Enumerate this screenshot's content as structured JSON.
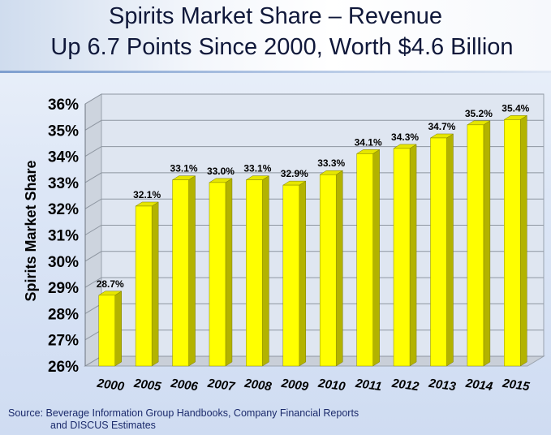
{
  "header": {
    "title_line1": "Spirits Market Share – Revenue",
    "title_line2": "Up 6.7 Points Since 2000, Worth $4.6 Billion"
  },
  "footer": {
    "source_line1": "Source: Beverage Information Group Handbooks, Company Financial Reports",
    "source_line2": "and DISCUS Estimates"
  },
  "colors": {
    "bar_face": "#ffff00",
    "bar_side": "#b3b300",
    "bar_top": "#e6e600"
  },
  "chart_data": {
    "type": "bar",
    "categories": [
      "2000",
      "2005",
      "2006",
      "2007",
      "2008",
      "2009",
      "2010",
      "2011",
      "2012",
      "2013",
      "2014",
      "2015"
    ],
    "values": [
      28.7,
      32.1,
      33.1,
      33.0,
      33.1,
      32.9,
      33.3,
      34.1,
      34.3,
      34.7,
      35.2,
      35.4
    ],
    "data_labels": [
      "28.7%",
      "32.1%",
      "33.1%",
      "33.0%",
      "33.1%",
      "32.9%",
      "33.3%",
      "34.1%",
      "34.3%",
      "34.7%",
      "35.2%",
      "35.4%"
    ],
    "ylabel": "Spirits Market Share",
    "xlabel": "",
    "ylim": [
      26,
      36
    ],
    "yticks": [
      26,
      27,
      28,
      29,
      30,
      31,
      32,
      33,
      34,
      35,
      36
    ],
    "ytick_labels": [
      "26%",
      "27%",
      "28%",
      "29%",
      "30%",
      "31%",
      "32%",
      "33%",
      "34%",
      "35%",
      "36%"
    ],
    "grid": true,
    "legend": "none"
  }
}
